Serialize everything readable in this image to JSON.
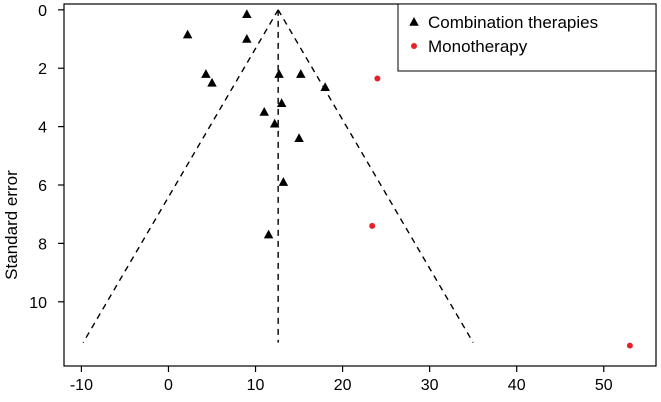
{
  "chart_data": {
    "type": "scatter",
    "title": "",
    "xlabel": "",
    "ylabel": "Standard error",
    "xlim": [
      -12,
      56
    ],
    "ylim": [
      -0.2,
      12.2
    ],
    "y_reversed": true,
    "x_ticks": [
      -10,
      0,
      10,
      20,
      30,
      40,
      50
    ],
    "y_ticks": [
      0,
      2,
      4,
      6,
      8,
      10
    ],
    "grid": false,
    "legend_position": "top-right",
    "series": [
      {
        "name": "Combination therapies",
        "marker": "triangle",
        "color": "#000000",
        "points": [
          {
            "x": 2.2,
            "y": 0.85
          },
          {
            "x": 9.0,
            "y": 0.15
          },
          {
            "x": 9.0,
            "y": 1.0
          },
          {
            "x": 4.3,
            "y": 2.2
          },
          {
            "x": 5.0,
            "y": 2.5
          },
          {
            "x": 12.7,
            "y": 2.2
          },
          {
            "x": 15.2,
            "y": 2.2
          },
          {
            "x": 18.0,
            "y": 2.65
          },
          {
            "x": 13.0,
            "y": 3.2
          },
          {
            "x": 11.0,
            "y": 3.5
          },
          {
            "x": 12.2,
            "y": 3.9
          },
          {
            "x": 15.0,
            "y": 4.4
          },
          {
            "x": 13.2,
            "y": 5.9
          },
          {
            "x": 11.5,
            "y": 7.7
          }
        ]
      },
      {
        "name": "Monotherapy",
        "marker": "circle",
        "color": "#e8202a",
        "points": [
          {
            "x": 24.0,
            "y": 2.35
          },
          {
            "x": 23.4,
            "y": 7.4
          },
          {
            "x": 53.0,
            "y": 11.5
          }
        ]
      }
    ],
    "funnel": {
      "apex": {
        "x": 12.6,
        "y": 0.0
      },
      "left_base": {
        "x": -9.8,
        "y": 11.4
      },
      "right_base": {
        "x": 35.0,
        "y": 11.4
      },
      "center_line_x": 12.6,
      "style": "dashed"
    }
  }
}
